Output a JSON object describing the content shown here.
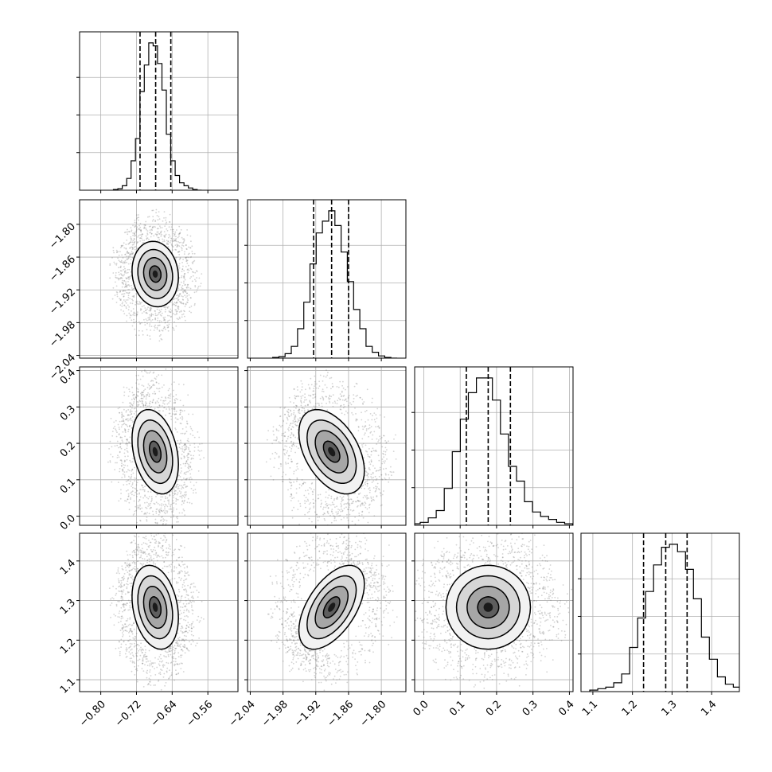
{
  "chart_data": {
    "type": "corner",
    "parameters": [
      {
        "ticks": [
          -0.8,
          -0.72,
          -0.64,
          -0.56
        ],
        "tick_labels": [
          "−0.80",
          "−0.72",
          "−0.64",
          "−0.56"
        ],
        "range": [
          -0.8475,
          -0.4925
        ],
        "quantiles": [
          -0.712,
          -0.677,
          -0.643
        ],
        "mean": -0.678,
        "std": 0.026
      },
      {
        "ticks": [
          -2.04,
          -1.98,
          -1.92,
          -1.86,
          -1.8
        ],
        "tick_labels": [
          "−2.04",
          "−1.98",
          "−1.92",
          "−1.86",
          "−1.80"
        ],
        "range": [
          -2.045,
          -1.755
        ],
        "quantiles": [
          -1.924,
          -1.891,
          -1.86
        ],
        "mean": -1.891,
        "std": 0.03
      },
      {
        "ticks": [
          0.0,
          0.1,
          0.2,
          0.3,
          0.4
        ],
        "tick_labels": [
          "0.0",
          "0.1",
          "0.2",
          "0.3",
          "0.4"
        ],
        "range": [
          -0.025,
          0.41
        ],
        "quantiles": [
          0.117,
          0.177,
          0.238
        ],
        "mean": 0.177,
        "std": 0.058
      },
      {
        "ticks": [
          1.1,
          1.2,
          1.3,
          1.4
        ],
        "tick_labels": [
          "1.1",
          "1.2",
          "1.3",
          "1.4"
        ],
        "range": [
          1.07,
          1.47
        ],
        "quantiles": [
          1.228,
          1.284,
          1.338
        ],
        "mean": 1.283,
        "std": 0.053
      }
    ],
    "correlations": {
      "1-0": -0.1,
      "2-0": -0.3,
      "2-1": -0.45,
      "3-0": -0.25,
      "3-1": 0.55,
      "3-2": 0.0
    },
    "histograms": [
      [
        0.005,
        0.01,
        0.03,
        0.08,
        0.2,
        0.35,
        0.67,
        0.85,
        1.0,
        0.98,
        0.86,
        0.68,
        0.38,
        0.2,
        0.1,
        0.05,
        0.03,
        0.015,
        0.005,
        0.0
      ],
      [
        0.005,
        0.01,
        0.03,
        0.08,
        0.2,
        0.38,
        0.64,
        0.85,
        0.93,
        1.0,
        0.9,
        0.72,
        0.52,
        0.33,
        0.2,
        0.08,
        0.04,
        0.015,
        0.005,
        0.0
      ],
      [
        0.01,
        0.02,
        0.05,
        0.1,
        0.25,
        0.5,
        0.72,
        0.9,
        1.0,
        1.0,
        0.85,
        0.62,
        0.4,
        0.3,
        0.16,
        0.09,
        0.06,
        0.04,
        0.02,
        0.01
      ],
      [
        0.01,
        0.02,
        0.03,
        0.06,
        0.12,
        0.3,
        0.5,
        0.68,
        0.86,
        0.98,
        1.0,
        0.95,
        0.83,
        0.63,
        0.37,
        0.22,
        0.1,
        0.05,
        0.03,
        0.01
      ]
    ],
    "contour_levels_sigma": [
      0.5,
      1.0,
      1.5,
      2.0
    ],
    "grid": true,
    "dashed_quantiles": [
      0.16,
      0.5,
      0.84
    ]
  }
}
